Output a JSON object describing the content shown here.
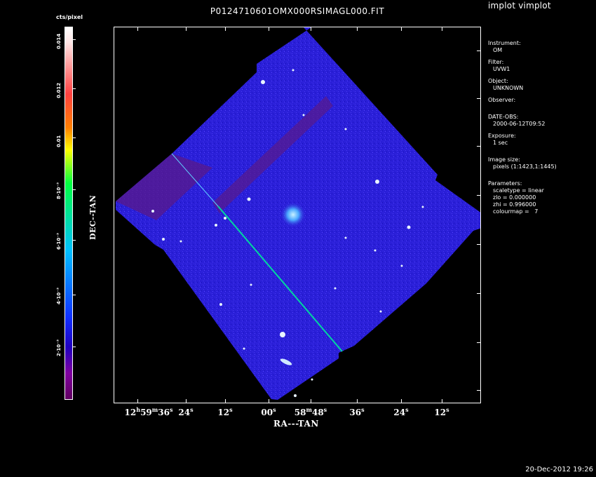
{
  "app": {
    "title": "implot vimplot"
  },
  "plot": {
    "title": "P0124710601OMX000RSIMAGL000.FIT",
    "x_axis_label": "RA---TAN",
    "y_axis_label": "DEC--TAN",
    "x_ticks": [
      {
        "h": "12",
        "hsup": "h",
        "m": "59",
        "msup": "m",
        "s": "36",
        "ssup": "s"
      },
      {
        "s": "24",
        "ssup": "s"
      },
      {
        "s": "12",
        "ssup": "s"
      },
      {
        "s": "00",
        "ssup": "s"
      },
      {
        "m": "58",
        "msup": "m",
        "s": "48",
        "ssup": "s"
      },
      {
        "s": "36",
        "ssup": "s"
      },
      {
        "s": "24",
        "ssup": "s"
      },
      {
        "s": "12",
        "ssup": "s"
      }
    ]
  },
  "colorbar": {
    "label": "cts/pixel",
    "tick_labels": [
      "0.014",
      "0.012",
      "0.01",
      "8·10⁻³",
      "6·10⁻³",
      "4·10⁻³",
      "2·10⁻³"
    ],
    "colors": {
      "top": "#ffffff",
      "bottom": "#600060"
    }
  },
  "info": {
    "instrument_label": "Instrument:",
    "instrument_value": "OM",
    "filter_label": "Filter:",
    "filter_value": "UVW1",
    "object_label": "Object:",
    "object_value": "UNKNOWN",
    "observer_label": "Observer:",
    "date_label": "DATE-OBS:",
    "date_value": "2000-06-12T09:52",
    "exposure_label": "Exposure:",
    "exposure_value": "1 sec",
    "image_size_label": "Image size:",
    "image_size_value": "pixels (1:1423,1:1445)",
    "parameters_label": "Parameters:",
    "scaletype": "scaletype = linear",
    "zlo": "zlo = 0.000000",
    "zhi": "zhi = 0.996000",
    "colourmap": "colourmap =   7"
  },
  "footer": {
    "timestamp": "20-Dec-2012 19:26"
  },
  "image": {
    "background_color": "#2a1fd8",
    "border_band_color": "#5a1a8a",
    "streak_color": "#00d8a0",
    "star_color": "#e8f4ff"
  }
}
